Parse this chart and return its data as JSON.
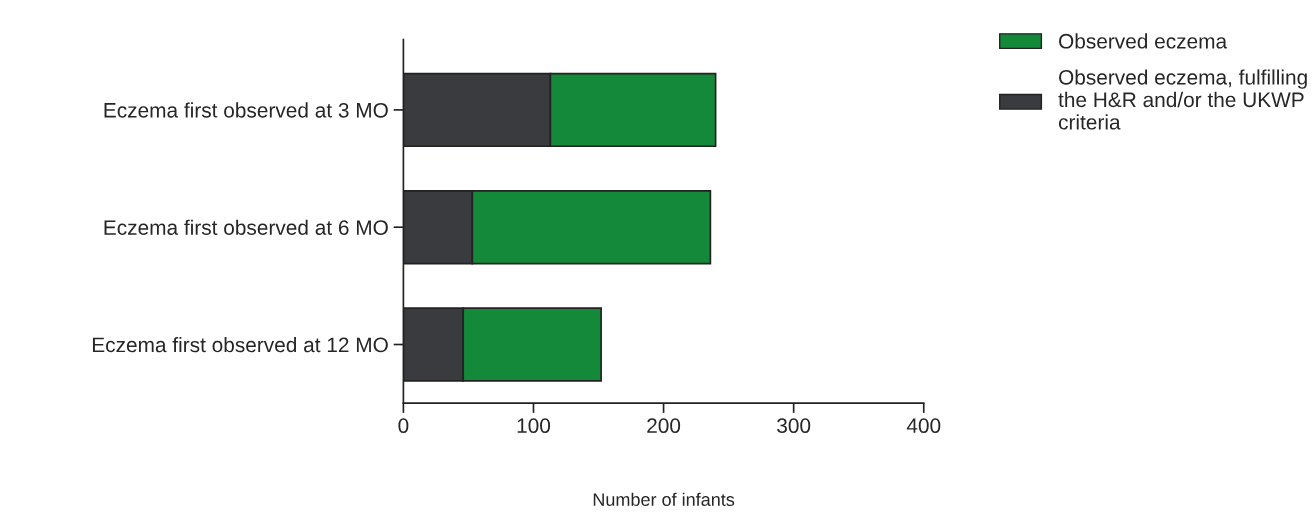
{
  "chart_data": {
    "type": "bar",
    "orientation": "horizontal",
    "stacked": true,
    "xlabel": "Number of infants",
    "categories": [
      "Eczema first observed at 3 MO",
      "Eczema first observed at 6 MO",
      "Eczema first observed at 12 MO"
    ],
    "series": [
      {
        "name": "Observed eczema, fulfilling the H&R and/or the UKWP criteria",
        "color": "#393b3f",
        "values": [
          113,
          53,
          46
        ]
      },
      {
        "name": "Observed eczema",
        "color": "#14893a",
        "values": [
          127,
          183,
          106
        ]
      }
    ],
    "xlim": [
      0,
      400
    ],
    "xticks": [
      0,
      100,
      200,
      300,
      400
    ],
    "grid": false,
    "legend": "top right"
  }
}
